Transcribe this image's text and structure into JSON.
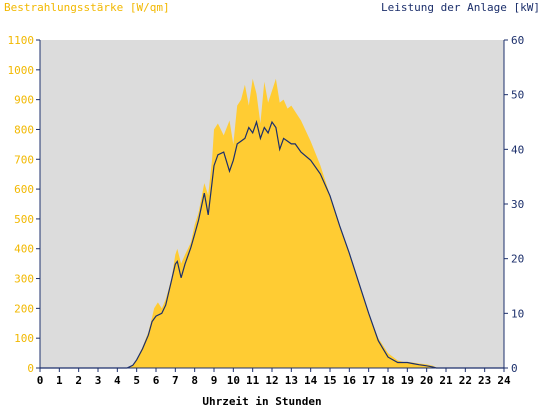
{
  "chart_data": {
    "type": "area",
    "left_axis_title": "Bestrahlungsstärke [W/qm]",
    "right_axis_title": "Leistung der Anlage [kW]",
    "xlabel": "Uhrzeit in Stunden",
    "x_ticks": [
      "0",
      "1",
      "2",
      "3",
      "4",
      "5",
      "6",
      "7",
      "8",
      "9",
      "10",
      "11",
      "12",
      "13",
      "14",
      "15",
      "16",
      "17",
      "18",
      "19",
      "20",
      "21",
      "22",
      "23",
      "24"
    ],
    "xlim": [
      0,
      24
    ],
    "left_ticks": [
      "0",
      "100",
      "200",
      "300",
      "400",
      "500",
      "600",
      "700",
      "800",
      "900",
      "1000",
      "1100"
    ],
    "ylim_left": [
      0,
      1100
    ],
    "right_ticks": [
      "0",
      "10",
      "20",
      "30",
      "40",
      "50",
      "60"
    ],
    "ylim_right": [
      0,
      60
    ],
    "grid": false,
    "colors": {
      "irradiance_fill": "#ffcc33",
      "power_line": "#1c2f6b",
      "plot_background": "#dcdcdc",
      "left_axis_text": "#f2b800",
      "right_axis_text": "#1c2f6b"
    },
    "series": [
      {
        "axis": "left",
        "x": [
          0,
          4.5,
          4.8,
          5.0,
          5.3,
          5.6,
          5.8,
          5.9,
          6.1,
          6.3,
          6.5,
          6.8,
          7.0,
          7.1,
          7.3,
          7.5,
          7.8,
          8.0,
          8.2,
          8.5,
          8.7,
          8.9,
          9.0,
          9.2,
          9.5,
          9.8,
          10.0,
          10.2,
          10.4,
          10.6,
          10.8,
          11.0,
          11.2,
          11.4,
          11.6,
          11.8,
          12.0,
          12.2,
          12.4,
          12.6,
          12.8,
          13.0,
          13.2,
          13.5,
          14.0,
          14.5,
          15.0,
          15.5,
          16.0,
          16.5,
          17.0,
          17.5,
          18.0,
          18.5,
          18.8,
          19.0,
          19.3,
          19.6,
          20.0,
          20.3,
          20.5,
          21.0,
          24
        ],
        "y": [
          0,
          0,
          10,
          30,
          70,
          120,
          170,
          200,
          220,
          200,
          230,
          300,
          380,
          400,
          350,
          380,
          420,
          480,
          520,
          620,
          580,
          700,
          800,
          820,
          780,
          830,
          750,
          880,
          900,
          950,
          880,
          970,
          920,
          820,
          960,
          890,
          930,
          970,
          890,
          900,
          870,
          880,
          860,
          830,
          760,
          680,
          580,
          480,
          380,
          280,
          180,
          100,
          50,
          25,
          20,
          20,
          18,
          15,
          12,
          8,
          2,
          0,
          0
        ]
      },
      {
        "axis": "right",
        "x": [
          0,
          4.5,
          4.8,
          5.0,
          5.3,
          5.6,
          5.8,
          6.0,
          6.3,
          6.5,
          6.8,
          7.0,
          7.1,
          7.3,
          7.5,
          7.8,
          8.0,
          8.2,
          8.5,
          8.7,
          8.9,
          9.0,
          9.2,
          9.5,
          9.8,
          10.0,
          10.2,
          10.4,
          10.6,
          10.8,
          11.0,
          11.2,
          11.4,
          11.6,
          11.8,
          12.0,
          12.2,
          12.4,
          12.6,
          12.8,
          13.0,
          13.2,
          13.5,
          14.0,
          14.5,
          15.0,
          15.5,
          16.0,
          16.5,
          17.0,
          17.5,
          18.0,
          18.5,
          18.8,
          19.0,
          19.3,
          19.6,
          20.0,
          20.3,
          20.5,
          21.0,
          24
        ],
        "y": [
          0,
          0,
          0.5,
          1.5,
          3.5,
          6,
          8.5,
          9.5,
          10,
          11.5,
          16,
          19,
          19.5,
          16.5,
          19,
          22,
          24.5,
          27,
          32,
          28,
          34,
          37,
          39,
          39.5,
          36,
          38,
          41,
          41.5,
          42,
          44,
          43,
          45,
          42,
          44,
          43,
          45,
          44,
          40,
          42,
          41.5,
          41,
          41,
          39.5,
          38,
          35.5,
          31.5,
          26,
          21,
          15.5,
          10,
          5,
          2,
          1,
          1,
          1,
          0.8,
          0.6,
          0.4,
          0.2,
          0,
          0,
          0
        ]
      }
    ]
  }
}
